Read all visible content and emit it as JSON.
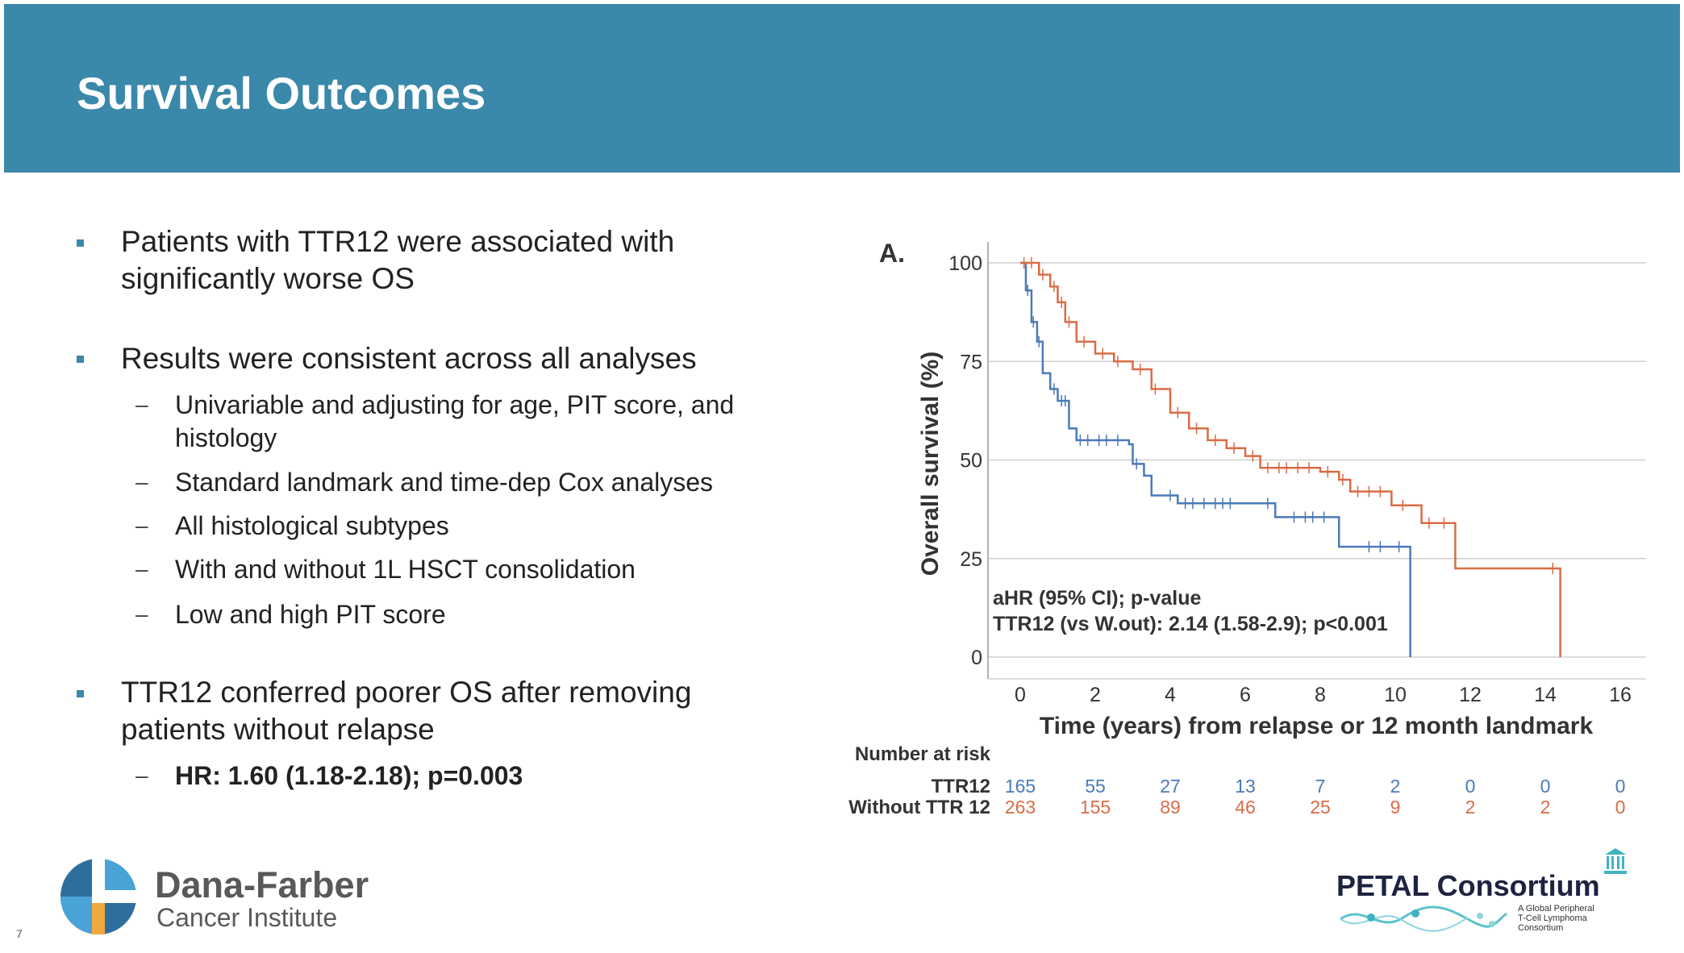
{
  "header": {
    "title": "Survival Outcomes"
  },
  "bullets": [
    {
      "text": "Patients with TTR12 were associated with significantly worse OS",
      "sub": []
    },
    {
      "text": "Results were consistent across all analyses",
      "sub": [
        "Univariable and adjusting for age, PIT score, and histology",
        "Standard landmark and time-dep Cox analyses",
        "All histological subtypes",
        "With and without 1L HSCT consolidation",
        "Low and high PIT score"
      ]
    },
    {
      "text": "TTR12 conferred poorer OS after removing patients without relapse",
      "sub": [
        "HR: 1.60 (1.18-2.18); p=0.003"
      ]
    }
  ],
  "chart_data": {
    "type": "line",
    "panel_label": "A.",
    "title": "",
    "xlabel": "Time (years) from relapse or 12 month landmark",
    "ylabel": "Overall survival (%)",
    "xlim": [
      0,
      16
    ],
    "ylim": [
      0,
      100
    ],
    "xticks": [
      "0",
      "2",
      "4",
      "6",
      "8",
      "10",
      "12",
      "14",
      "16"
    ],
    "yticks": [
      "0",
      "25",
      "50",
      "75",
      "100"
    ],
    "grid": "horizontal",
    "annotation": [
      "aHR (95% CI); p-value",
      "TTR12 (vs W.out): 2.14 (1.58-2.9); p<0.001"
    ],
    "series": [
      {
        "name": "TTR12",
        "color": "#4a7ab8",
        "x": [
          0,
          0.15,
          0.3,
          0.45,
          0.6,
          0.8,
          1.0,
          1.3,
          1.5,
          2.0,
          2.9,
          3.0,
          3.3,
          3.5,
          4.2,
          6.8,
          8.5,
          10.4,
          10.4
        ],
        "y": [
          100,
          93,
          85,
          80,
          72,
          68,
          65,
          58,
          55,
          55,
          54,
          49,
          46,
          41,
          39,
          35.5,
          28,
          28,
          0
        ],
        "censored_x": [
          0.2,
          0.35,
          0.5,
          0.9,
          1.1,
          1.2,
          1.6,
          1.8,
          2.1,
          2.3,
          2.6,
          3.1,
          4.0,
          4.4,
          4.6,
          4.9,
          5.2,
          5.4,
          5.6,
          6.6,
          7.3,
          7.6,
          7.8,
          8.1,
          9.3,
          9.6,
          10.1
        ]
      },
      {
        "name": "Without TTR 12",
        "color": "#d96c45",
        "x": [
          0,
          0.5,
          0.8,
          1.0,
          1.2,
          1.5,
          2.0,
          2.5,
          3.0,
          3.5,
          4.0,
          4.5,
          5.0,
          5.5,
          6.0,
          6.4,
          8.0,
          8.5,
          8.8,
          9.9,
          10.7,
          11.6,
          14.4,
          14.4
        ],
        "y": [
          100,
          97,
          94,
          90,
          85,
          80,
          77,
          75,
          73,
          68,
          62,
          58,
          55,
          53,
          51,
          48,
          47,
          45,
          42,
          38.5,
          34,
          22.5,
          22.5,
          0
        ],
        "censored_x": [
          0.1,
          0.3,
          0.6,
          0.9,
          1.1,
          1.3,
          1.7,
          2.2,
          2.6,
          3.2,
          3.6,
          4.2,
          4.7,
          5.2,
          5.7,
          6.2,
          6.6,
          6.9,
          7.1,
          7.4,
          7.7,
          8.2,
          8.6,
          9.0,
          9.3,
          9.6,
          10.2,
          10.9,
          11.3,
          14.2
        ]
      }
    ],
    "risk_table": {
      "title": "Number at risk",
      "rows": [
        {
          "label": "TTR12",
          "values": [
            "165",
            "55",
            "27",
            "13",
            "7",
            "2",
            "0",
            "0",
            "0"
          ]
        },
        {
          "label": "Without TTR 12",
          "values": [
            "263",
            "155",
            "89",
            "46",
            "25",
            "9",
            "2",
            "2",
            "0"
          ]
        }
      ]
    }
  },
  "logos": {
    "dfci_line1": "Dana-Farber",
    "dfci_line2": "Cancer Institute",
    "petal": "PETAL Consortium",
    "petal_sub": [
      "A Global Peripheral",
      "T-Cell Lymphoma",
      "Consortium"
    ]
  },
  "page_number": "7"
}
